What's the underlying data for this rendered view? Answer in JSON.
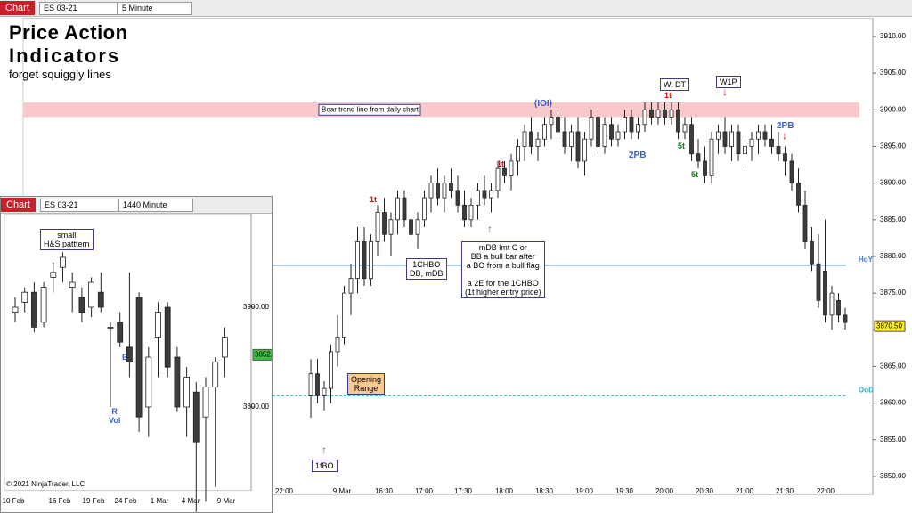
{
  "toolbar": {
    "tab": "Chart",
    "instrument": "ES 03-21",
    "interval": "5 Minute"
  },
  "header": {
    "title_line1": "Price Action",
    "title_line2": "Indicators",
    "tagline": "forget squiggly lines"
  },
  "chart_data": [
    {
      "type": "candlestick",
      "open": [
        3861,
        3864,
        3861,
        3862,
        3867,
        3869,
        3875,
        3877,
        3882,
        3877,
        3882,
        3886,
        3883,
        3885,
        3888,
        3885,
        3883,
        3885,
        3888,
        3890,
        3888,
        3890,
        3889,
        3887,
        3885,
        3887,
        3889,
        3888,
        3889,
        3892,
        3891,
        3893,
        3895,
        3897,
        3895,
        3896,
        3898,
        3899,
        3897,
        3895,
        3897,
        3893,
        3896,
        3899,
        3895,
        3898,
        3896,
        3897,
        3899,
        3897,
        3898,
        3900,
        3899,
        3900,
        3899,
        3900,
        3897,
        3898,
        3894,
        3893,
        3891,
        3896,
        3897,
        3895,
        3897,
        3894,
        3895,
        3896,
        3897,
        3896,
        3895,
        3894,
        3893,
        3890,
        3887,
        3882,
        3879,
        3878,
        3872,
        3874,
        3872
      ],
      "high": [
        3866,
        3866,
        3863,
        3868,
        3872,
        3876,
        3879,
        3884,
        3884,
        3883,
        3887,
        3888,
        3886,
        3889,
        3889,
        3888,
        3886,
        3889,
        3891,
        3892,
        3891,
        3892,
        3891,
        3889,
        3888,
        3890,
        3891,
        3890,
        3893,
        3893,
        3894,
        3896,
        3898,
        3899,
        3897,
        3899,
        3900,
        3900,
        3899,
        3898,
        3899,
        3897,
        3900,
        3900,
        3899,
        3899,
        3898,
        3900,
        3900,
        3899,
        3901,
        3901,
        3901,
        3901,
        3901,
        3901,
        3899,
        3899,
        3896,
        3895,
        3897,
        3898,
        3899,
        3898,
        3898,
        3896,
        3897,
        3898,
        3898,
        3898,
        3897,
        3895,
        3894,
        3892,
        3889,
        3884,
        3883,
        3885,
        3876,
        3875,
        3873
      ],
      "low": [
        3858,
        3860,
        3859,
        3860,
        3865,
        3868,
        3872,
        3875,
        3876,
        3876,
        3880,
        3882,
        3880,
        3883,
        3884,
        3882,
        3881,
        3884,
        3886,
        3887,
        3886,
        3888,
        3886,
        3884,
        3884,
        3885,
        3887,
        3886,
        3888,
        3890,
        3889,
        3891,
        3893,
        3894,
        3893,
        3895,
        3896,
        3896,
        3894,
        3893,
        3892,
        3891,
        3895,
        3894,
        3894,
        3895,
        3895,
        3896,
        3896,
        3896,
        3897,
        3898,
        3898,
        3898,
        3898,
        3896,
        3896,
        3893,
        3892,
        3890,
        3890,
        3894,
        3894,
        3893,
        3893,
        3892,
        3893,
        3894,
        3895,
        3894,
        3893,
        3891,
        3889,
        3886,
        3881,
        3878,
        3873,
        3871,
        3870,
        3871,
        3870
      ],
      "close": [
        3864,
        3861,
        3862,
        3867,
        3869,
        3875,
        3877,
        3882,
        3877,
        3882,
        3886,
        3883,
        3885,
        3888,
        3885,
        3883,
        3885,
        3888,
        3890,
        3888,
        3890,
        3889,
        3887,
        3885,
        3887,
        3889,
        3888,
        3889,
        3892,
        3891,
        3893,
        3895,
        3897,
        3895,
        3896,
        3898,
        3899,
        3897,
        3895,
        3897,
        3893,
        3896,
        3899,
        3895,
        3898,
        3896,
        3897,
        3899,
        3897,
        3898,
        3900,
        3899,
        3900,
        3899,
        3900,
        3897,
        3898,
        3894,
        3893,
        3891,
        3896,
        3897,
        3895,
        3897,
        3894,
        3895,
        3896,
        3897,
        3896,
        3895,
        3894,
        3893,
        3890,
        3887,
        3882,
        3879,
        3874,
        3872,
        3875,
        3872,
        3871
      ],
      "ylim": [
        3848,
        3912
      ],
      "yticks": [
        {
          "value": 3850,
          "label": "3850.00"
        },
        {
          "value": 3855,
          "label": "3855.00"
        },
        {
          "value": 3860,
          "label": "3860.00"
        },
        {
          "value": 3865,
          "label": "3865.00"
        },
        {
          "value": 3870,
          "label": "3870.00"
        },
        {
          "value": 3875,
          "label": "3875.00"
        },
        {
          "value": 3880,
          "label": "3880.00"
        },
        {
          "value": 3885,
          "label": "3885.00"
        },
        {
          "value": 3890,
          "label": "3890.00"
        },
        {
          "value": 3895,
          "label": "3895.00"
        },
        {
          "value": 3900,
          "label": "3900.00"
        },
        {
          "value": 3905,
          "label": "3905.00"
        },
        {
          "value": 3910,
          "label": "3910.00"
        }
      ],
      "xtick_labels": [
        "22:00",
        "9 Mar",
        "16:30",
        "17:00",
        "17:30",
        "18:00",
        "18:30",
        "19:00",
        "19:30",
        "20:00",
        "20:30",
        "21:00",
        "21:30",
        "22:00"
      ],
      "last_price": {
        "value": 3870.5,
        "label": "3870.50"
      },
      "levels": [
        {
          "name": "HoY",
          "value": 3878.8,
          "color": "#4a78c8"
        },
        {
          "name": "OoD",
          "value": 3861,
          "color": "#1fb3d6"
        }
      ],
      "bear_trend_band": {
        "label": "Bear trend line from daily chart",
        "low": 3899,
        "high": 3901
      },
      "annotations": [
        "(IOI)",
        "W, DT",
        "W1P",
        "1t",
        "2PB",
        "2PB",
        "5t",
        "5t",
        "1t",
        "1t",
        "1CHBO\nDB, mDB",
        "mDB lmt C or\nBB a bull bar after\na BO from a bull flag\n\na 2E for the 1CHBO\n(1t higher entry price)",
        "Opening\nRange",
        "1fBO"
      ]
    },
    {
      "type": "candlestick",
      "window": {
        "tab": "Chart",
        "instrument": "ES 03-21",
        "interval": "1440 Minute"
      },
      "open": [
        3895,
        3905,
        3915,
        3885,
        3930,
        3940,
        3920,
        3910,
        3900,
        3915,
        3880,
        3885,
        3860,
        3910,
        3800,
        3870,
        3900,
        3850,
        3800,
        3815,
        3790,
        3820,
        3850
      ],
      "high": [
        3910,
        3920,
        3925,
        3925,
        3945,
        3955,
        3935,
        3920,
        3930,
        3935,
        3885,
        3895,
        3935,
        3915,
        3860,
        3905,
        3905,
        3860,
        3840,
        3825,
        3830,
        3850,
        3880
      ],
      "low": [
        3885,
        3895,
        3875,
        3880,
        3915,
        3925,
        3895,
        3885,
        3890,
        3895,
        3800,
        3860,
        3830,
        3775,
        3770,
        3830,
        3830,
        3795,
        3770,
        3695,
        3705,
        3720,
        3830
      ],
      "close": [
        3900,
        3915,
        3880,
        3920,
        3935,
        3950,
        3925,
        3895,
        3925,
        3900,
        3880,
        3865,
        3845,
        3790,
        3850,
        3895,
        3840,
        3800,
        3830,
        3765,
        3820,
        3845,
        3870
      ],
      "ylim": [
        3720,
        3990
      ],
      "yticks": [
        {
          "value": 3800,
          "label": "3800.00"
        },
        {
          "value": 3900,
          "label": "3900.00"
        }
      ],
      "xtick_labels": [
        "10 Feb",
        "16 Feb",
        "19 Feb",
        "24 Feb",
        "1 Mar",
        "4 Mar",
        "9 Mar"
      ],
      "last_price": {
        "value": 3852.34,
        "label": "3852.34"
      },
      "annotations": [
        "small\nH&S patttern",
        "R\nVol",
        "E"
      ],
      "copyright": "© 2021 NinjaTrader, LLC"
    }
  ]
}
